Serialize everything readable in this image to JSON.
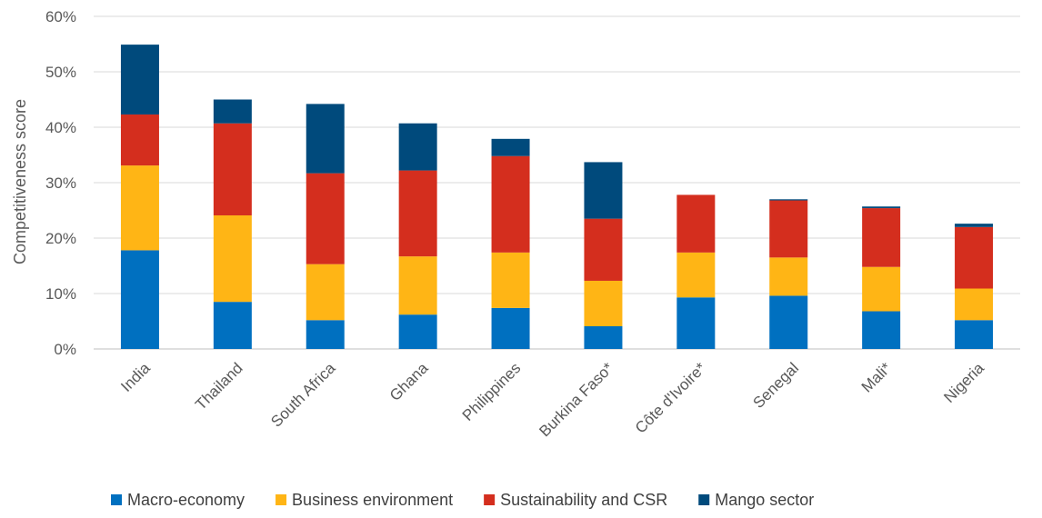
{
  "chart_data": {
    "type": "bar",
    "stacked": true,
    "ylabel": "Competitiveness score",
    "ylim": [
      0,
      60
    ],
    "yticks": [
      "0%",
      "10%",
      "20%",
      "30%",
      "40%",
      "50%",
      "60%"
    ],
    "yticks_values": [
      0,
      10,
      20,
      30,
      40,
      50,
      60
    ],
    "grid": true,
    "legend_position": "bottom",
    "categories": [
      "India",
      "Thailand",
      "South Africa",
      "Ghana",
      "Philippines",
      "Burkina Faso*",
      "Côte d'Ivoire*",
      "Senegal",
      "Mali*",
      "Nigeria"
    ],
    "series": [
      {
        "name": "Macro-economy",
        "color": "#0070c0",
        "values": [
          17.8,
          8.5,
          5.2,
          6.2,
          7.4,
          4.1,
          9.3,
          9.6,
          6.8,
          5.2
        ]
      },
      {
        "name": "Business environment",
        "color": "#ffb515",
        "values": [
          15.3,
          15.6,
          10.1,
          10.5,
          10.0,
          8.2,
          8.1,
          6.9,
          8.0,
          5.7
        ]
      },
      {
        "name": "Sustainability and CSR",
        "color": "#d42e1e",
        "values": [
          9.2,
          16.6,
          16.4,
          15.5,
          17.4,
          11.2,
          10.4,
          10.3,
          10.6,
          11.1
        ]
      },
      {
        "name": "Mango sector",
        "color": "#004a7c",
        "values": [
          12.6,
          4.3,
          12.5,
          8.5,
          3.1,
          10.2,
          0.0,
          0.2,
          0.3,
          0.6
        ]
      }
    ]
  }
}
